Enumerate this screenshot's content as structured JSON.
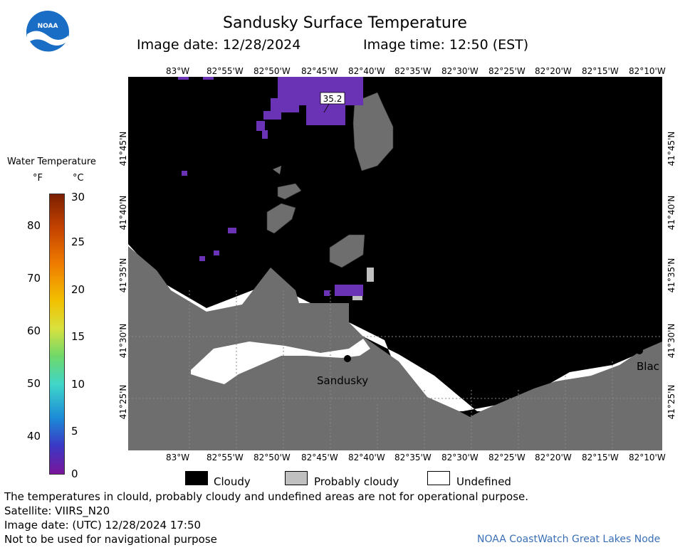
{
  "header": {
    "title": "Sandusky Surface Temperature",
    "image_date": "Image date: 12/28/2024",
    "image_time": "Image time: 12:50 (EST)"
  },
  "logo": {
    "text": "NOAA"
  },
  "axes": {
    "lon_top": [
      "83°W",
      "82°55'W",
      "82°50'W",
      "82°45'W",
      "82°40'W",
      "82°35'W",
      "82°30'W",
      "82°25'W",
      "82°20'W",
      "82°15'W",
      "82°10'W"
    ],
    "lon_bottom": [
      "83°W",
      "82°55'W",
      "82°50'W",
      "82°45'W",
      "82°40'W",
      "82°35'W",
      "82°30'W",
      "82°25'W",
      "82°20'W",
      "82°15'W",
      "82°10'W"
    ],
    "lat_left": [
      "41°45'N",
      "41°40'N",
      "41°35'N",
      "41°30'N",
      "41°25'N"
    ],
    "lat_right": [
      "41°45'N",
      "41°40'N",
      "41°35'N",
      "41°30'N",
      "41°25'N"
    ]
  },
  "map": {
    "temperature_label": "35.2",
    "places": [
      {
        "name": "Sandusky"
      },
      {
        "name": "Blac"
      }
    ],
    "colors": {
      "cloudy": "#000000",
      "probably_cloudy": "#c0c0c0",
      "undefined": "#ffffff",
      "land": "#6e6e6e",
      "water_cold": "#6a32b5"
    }
  },
  "color_scale": {
    "title": "Water Temperature",
    "unit_f": "°F",
    "unit_c": "°C",
    "f_ticks": [
      "80",
      "70",
      "60",
      "50",
      "40"
    ],
    "c_ticks": [
      "30",
      "25",
      "20",
      "15",
      "10",
      "5",
      "0"
    ]
  },
  "legend": [
    {
      "label": "Cloudy",
      "color": "#000000"
    },
    {
      "label": "Probably cloudy",
      "color": "#c0c0c0"
    },
    {
      "label": "Undefined",
      "color": "#ffffff"
    }
  ],
  "footer": {
    "disclaimer": "The temperatures in clould, probably cloudy and undefined areas are not for operational purpose.",
    "satellite": "Satellite: VIIRS_N20",
    "utc_date": "Image date: (UTC) 12/28/2024  17:50",
    "nav_warning": "Not to be used for navigational purpose",
    "credit": "NOAA CoastWatch Great Lakes Node"
  }
}
